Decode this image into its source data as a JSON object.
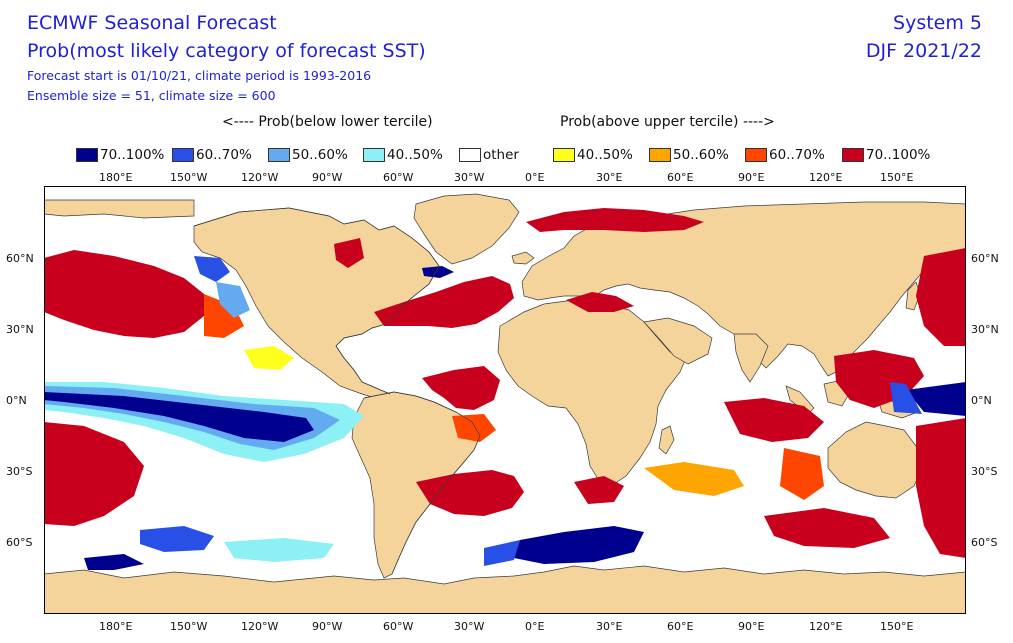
{
  "header": {
    "title": "ECMWF Seasonal Forecast",
    "subtitle": "Prob(most likely category of forecast SST)",
    "info_line1": "Forecast start is 01/10/21, climate period is 1993-2016",
    "info_line2": "Ensemble size = 51, climate size = 600",
    "system": "System 5",
    "season": "DJF 2021/22"
  },
  "legend": {
    "below_label": "<---- Prob(below lower tercile)",
    "above_label": "Prob(above upper tercile) ---->",
    "items": [
      {
        "label": "70..100%",
        "color": "#00008f"
      },
      {
        "label": "60..70%",
        "color": "#2850e6"
      },
      {
        "label": "50..60%",
        "color": "#64aaf0"
      },
      {
        "label": "40..50%",
        "color": "#8cf0f5"
      },
      {
        "label": "other",
        "color": "#ffffff"
      },
      {
        "label": "40..50%",
        "color": "#ffff1e"
      },
      {
        "label": "50..60%",
        "color": "#ffa500"
      },
      {
        "label": "60..70%",
        "color": "#ff4600"
      },
      {
        "label": "70..100%",
        "color": "#c8001e"
      }
    ]
  },
  "axes": {
    "lon_ticks": [
      "180°E",
      "150°W",
      "120°W",
      "90°W",
      "60°W",
      "30°W",
      "0°E",
      "30°E",
      "60°E",
      "90°E",
      "120°E",
      "150°E"
    ],
    "lat_ticks": [
      "60°N",
      "30°N",
      "0°N",
      "30°S",
      "60°S"
    ]
  },
  "colors": {
    "land": "#f5d49b",
    "ocean_other": "#ffffff"
  }
}
